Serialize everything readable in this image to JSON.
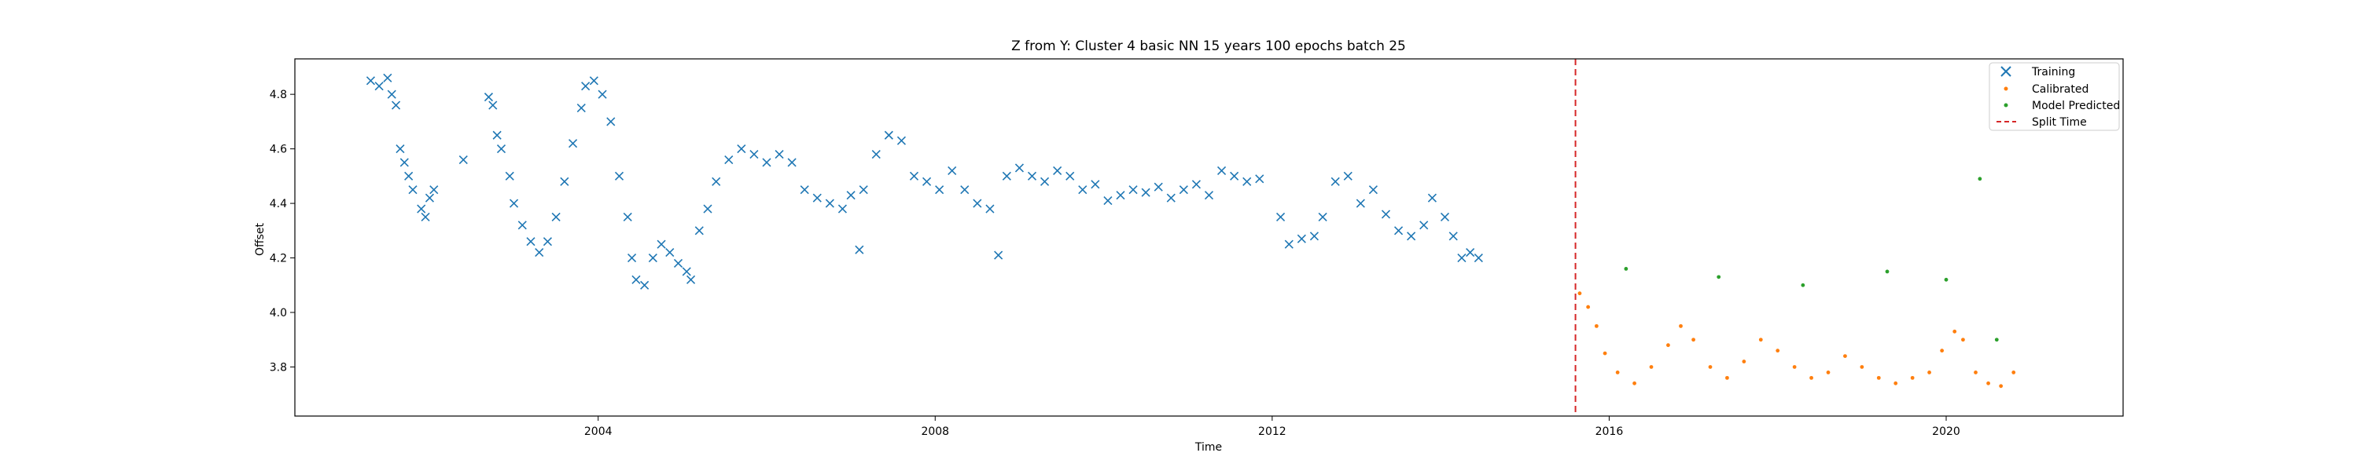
{
  "chart_data": {
    "type": "scatter",
    "title": "Z from Y: Cluster 4 basic NN 15 years 100 epochs batch 25",
    "xlabel": "Time",
    "ylabel": "Offset",
    "x_ticks": [
      {
        "value": 2004,
        "label": "2004"
      },
      {
        "value": 2008,
        "label": "2008"
      },
      {
        "value": 2012,
        "label": "2012"
      },
      {
        "value": 2016,
        "label": "2016"
      },
      {
        "value": 2020,
        "label": "2020"
      }
    ],
    "y_ticks": [
      {
        "value": 3.8,
        "label": "3.8"
      },
      {
        "value": 4.0,
        "label": "4.0"
      },
      {
        "value": 4.2,
        "label": "4.2"
      },
      {
        "value": 4.4,
        "label": "4.4"
      },
      {
        "value": 4.6,
        "label": "4.6"
      },
      {
        "value": 4.8,
        "label": "4.8"
      }
    ],
    "xlim": [
      2000.4,
      2022.1
    ],
    "ylim": [
      3.62,
      4.93
    ],
    "grid": false,
    "legend_position": "top-right",
    "colors": {
      "training": "#1f77b4",
      "calibrated": "#ff7f0e",
      "predicted": "#2ca02c",
      "split": "#d62728"
    },
    "split_time": 2015.6,
    "series": [
      {
        "name": "Training",
        "marker": "x",
        "points": [
          [
            2001.3,
            4.85
          ],
          [
            2001.4,
            4.83
          ],
          [
            2001.5,
            4.86
          ],
          [
            2001.55,
            4.8
          ],
          [
            2001.6,
            4.76
          ],
          [
            2001.65,
            4.6
          ],
          [
            2001.7,
            4.55
          ],
          [
            2001.75,
            4.5
          ],
          [
            2001.8,
            4.45
          ],
          [
            2001.9,
            4.38
          ],
          [
            2001.95,
            4.35
          ],
          [
            2002.0,
            4.42
          ],
          [
            2002.05,
            4.45
          ],
          [
            2002.4,
            4.56
          ],
          [
            2002.7,
            4.79
          ],
          [
            2002.75,
            4.76
          ],
          [
            2002.8,
            4.65
          ],
          [
            2002.85,
            4.6
          ],
          [
            2002.95,
            4.5
          ],
          [
            2003.0,
            4.4
          ],
          [
            2003.1,
            4.32
          ],
          [
            2003.2,
            4.26
          ],
          [
            2003.3,
            4.22
          ],
          [
            2003.4,
            4.26
          ],
          [
            2003.5,
            4.35
          ],
          [
            2003.6,
            4.48
          ],
          [
            2003.7,
            4.62
          ],
          [
            2003.8,
            4.75
          ],
          [
            2003.85,
            4.83
          ],
          [
            2003.95,
            4.85
          ],
          [
            2004.05,
            4.8
          ],
          [
            2004.15,
            4.7
          ],
          [
            2004.25,
            4.5
          ],
          [
            2004.35,
            4.35
          ],
          [
            2004.4,
            4.2
          ],
          [
            2004.45,
            4.12
          ],
          [
            2004.55,
            4.1
          ],
          [
            2004.65,
            4.2
          ],
          [
            2004.75,
            4.25
          ],
          [
            2004.85,
            4.22
          ],
          [
            2004.95,
            4.18
          ],
          [
            2005.05,
            4.15
          ],
          [
            2005.1,
            4.12
          ],
          [
            2005.2,
            4.3
          ],
          [
            2005.3,
            4.38
          ],
          [
            2005.4,
            4.48
          ],
          [
            2005.55,
            4.56
          ],
          [
            2005.7,
            4.6
          ],
          [
            2005.85,
            4.58
          ],
          [
            2006.0,
            4.55
          ],
          [
            2006.15,
            4.58
          ],
          [
            2006.3,
            4.55
          ],
          [
            2006.45,
            4.45
          ],
          [
            2006.6,
            4.42
          ],
          [
            2006.75,
            4.4
          ],
          [
            2006.9,
            4.38
          ],
          [
            2007.0,
            4.43
          ],
          [
            2007.1,
            4.23
          ],
          [
            2007.15,
            4.45
          ],
          [
            2007.3,
            4.58
          ],
          [
            2007.45,
            4.65
          ],
          [
            2007.6,
            4.63
          ],
          [
            2007.75,
            4.5
          ],
          [
            2007.9,
            4.48
          ],
          [
            2008.05,
            4.45
          ],
          [
            2008.2,
            4.52
          ],
          [
            2008.35,
            4.45
          ],
          [
            2008.5,
            4.4
          ],
          [
            2008.65,
            4.38
          ],
          [
            2008.75,
            4.21
          ],
          [
            2008.85,
            4.5
          ],
          [
            2009.0,
            4.53
          ],
          [
            2009.15,
            4.5
          ],
          [
            2009.3,
            4.48
          ],
          [
            2009.45,
            4.52
          ],
          [
            2009.6,
            4.5
          ],
          [
            2009.75,
            4.45
          ],
          [
            2009.9,
            4.47
          ],
          [
            2010.05,
            4.41
          ],
          [
            2010.2,
            4.43
          ],
          [
            2010.35,
            4.45
          ],
          [
            2010.5,
            4.44
          ],
          [
            2010.65,
            4.46
          ],
          [
            2010.8,
            4.42
          ],
          [
            2010.95,
            4.45
          ],
          [
            2011.1,
            4.47
          ],
          [
            2011.25,
            4.43
          ],
          [
            2011.4,
            4.52
          ],
          [
            2011.55,
            4.5
          ],
          [
            2011.7,
            4.48
          ],
          [
            2011.85,
            4.49
          ],
          [
            2012.1,
            4.35
          ],
          [
            2012.2,
            4.25
          ],
          [
            2012.35,
            4.27
          ],
          [
            2012.5,
            4.28
          ],
          [
            2012.6,
            4.35
          ],
          [
            2012.75,
            4.48
          ],
          [
            2012.9,
            4.5
          ],
          [
            2013.05,
            4.4
          ],
          [
            2013.2,
            4.45
          ],
          [
            2013.35,
            4.36
          ],
          [
            2013.5,
            4.3
          ],
          [
            2013.65,
            4.28
          ],
          [
            2013.8,
            4.32
          ],
          [
            2013.9,
            4.42
          ],
          [
            2014.05,
            4.35
          ],
          [
            2014.15,
            4.28
          ],
          [
            2014.25,
            4.2
          ],
          [
            2014.35,
            4.22
          ],
          [
            2014.45,
            4.2
          ]
        ]
      },
      {
        "name": "Calibrated",
        "marker": "dot",
        "points": [
          [
            2015.65,
            4.07
          ],
          [
            2015.75,
            4.02
          ],
          [
            2015.85,
            3.95
          ],
          [
            2015.95,
            3.85
          ],
          [
            2016.1,
            3.78
          ],
          [
            2016.3,
            3.74
          ],
          [
            2016.5,
            3.8
          ],
          [
            2016.7,
            3.88
          ],
          [
            2016.85,
            3.95
          ],
          [
            2017.0,
            3.9
          ],
          [
            2017.2,
            3.8
          ],
          [
            2017.4,
            3.76
          ],
          [
            2017.6,
            3.82
          ],
          [
            2017.8,
            3.9
          ],
          [
            2018.0,
            3.86
          ],
          [
            2018.2,
            3.8
          ],
          [
            2018.4,
            3.76
          ],
          [
            2018.6,
            3.78
          ],
          [
            2018.8,
            3.84
          ],
          [
            2019.0,
            3.8
          ],
          [
            2019.2,
            3.76
          ],
          [
            2019.4,
            3.74
          ],
          [
            2019.6,
            3.76
          ],
          [
            2019.8,
            3.78
          ],
          [
            2019.95,
            3.86
          ],
          [
            2020.1,
            3.93
          ],
          [
            2020.2,
            3.9
          ],
          [
            2020.35,
            3.78
          ],
          [
            2020.5,
            3.74
          ],
          [
            2020.65,
            3.73
          ],
          [
            2020.8,
            3.78
          ]
        ]
      },
      {
        "name": "Model Predicted",
        "marker": "dot",
        "points": [
          [
            2016.2,
            4.16
          ],
          [
            2017.3,
            4.13
          ],
          [
            2018.3,
            4.1
          ],
          [
            2019.3,
            4.15
          ],
          [
            2020.0,
            4.12
          ],
          [
            2020.4,
            4.49
          ],
          [
            2020.6,
            3.9
          ]
        ]
      }
    ],
    "legend": [
      {
        "label": "Training",
        "series": "training",
        "marker": "x"
      },
      {
        "label": "Calibrated",
        "series": "calibrated",
        "marker": "dot"
      },
      {
        "label": "Model Predicted",
        "series": "predicted",
        "marker": "dot"
      },
      {
        "label": "Split Time",
        "series": "split",
        "marker": "dashed-line"
      }
    ]
  }
}
